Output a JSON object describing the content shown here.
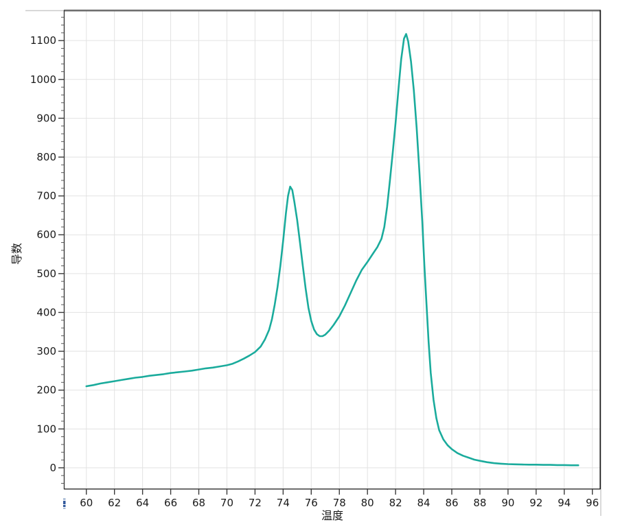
{
  "window": {
    "background_color": "#ffffff"
  },
  "chart_data": {
    "type": "line",
    "title": "",
    "xlabel": "温度",
    "ylabel": "导数",
    "x_range": [
      58.4,
      96.6
    ],
    "y_range": [
      -55,
      1178
    ],
    "x_ticks": [
      60,
      62,
      64,
      66,
      68,
      70,
      72,
      74,
      76,
      78,
      80,
      82,
      84,
      86,
      88,
      90,
      92,
      94,
      96
    ],
    "y_ticks": [
      0,
      100,
      200,
      300,
      400,
      500,
      600,
      700,
      800,
      900,
      1000,
      1100
    ],
    "y_minor_step": 20,
    "grid": true,
    "legend": "none",
    "colors": {
      "grid": "#e2e2e2",
      "tick_label": "#1a1a1a",
      "major_tick": "#3a3a3a",
      "minor_tick": "#5a5a5a"
    },
    "series": [
      {
        "name": "melt-curve-derivative",
        "color": "#1aab9c",
        "stroke_width": 2.6,
        "points": [
          [
            60,
            210
          ],
          [
            60.5,
            213
          ],
          [
            61,
            217
          ],
          [
            61.5,
            220
          ],
          [
            62,
            223
          ],
          [
            62.5,
            226
          ],
          [
            63,
            229
          ],
          [
            63.5,
            232
          ],
          [
            64,
            234
          ],
          [
            64.5,
            237
          ],
          [
            65,
            239
          ],
          [
            65.5,
            241
          ],
          [
            66,
            244
          ],
          [
            66.5,
            246
          ],
          [
            67,
            248
          ],
          [
            67.5,
            250
          ],
          [
            68,
            253
          ],
          [
            68.5,
            256
          ],
          [
            69,
            258
          ],
          [
            69.5,
            261
          ],
          [
            70,
            264
          ],
          [
            70.4,
            268
          ],
          [
            70.8,
            274
          ],
          [
            71.2,
            281
          ],
          [
            71.6,
            289
          ],
          [
            72,
            298
          ],
          [
            72.4,
            312
          ],
          [
            72.7,
            330
          ],
          [
            73,
            355
          ],
          [
            73.2,
            382
          ],
          [
            73.4,
            420
          ],
          [
            73.6,
            465
          ],
          [
            73.8,
            520
          ],
          [
            74,
            585
          ],
          [
            74.2,
            655
          ],
          [
            74.35,
            700
          ],
          [
            74.5,
            724
          ],
          [
            74.65,
            715
          ],
          [
            74.8,
            685
          ],
          [
            75,
            638
          ],
          [
            75.2,
            580
          ],
          [
            75.4,
            520
          ],
          [
            75.6,
            462
          ],
          [
            75.8,
            412
          ],
          [
            76,
            378
          ],
          [
            76.2,
            356
          ],
          [
            76.4,
            344
          ],
          [
            76.6,
            339
          ],
          [
            76.8,
            339
          ],
          [
            77,
            343
          ],
          [
            77.3,
            354
          ],
          [
            77.6,
            368
          ],
          [
            78,
            390
          ],
          [
            78.4,
            418
          ],
          [
            78.8,
            450
          ],
          [
            79.2,
            482
          ],
          [
            79.6,
            510
          ],
          [
            80,
            530
          ],
          [
            80.4,
            552
          ],
          [
            80.7,
            568
          ],
          [
            81,
            590
          ],
          [
            81.2,
            620
          ],
          [
            81.4,
            672
          ],
          [
            81.6,
            740
          ],
          [
            81.8,
            812
          ],
          [
            82,
            888
          ],
          [
            82.2,
            972
          ],
          [
            82.4,
            1052
          ],
          [
            82.6,
            1105
          ],
          [
            82.75,
            1117
          ],
          [
            82.9,
            1098
          ],
          [
            83.1,
            1046
          ],
          [
            83.3,
            972
          ],
          [
            83.5,
            876
          ],
          [
            83.7,
            760
          ],
          [
            83.9,
            635
          ],
          [
            84.05,
            520
          ],
          [
            84.2,
            420
          ],
          [
            84.35,
            325
          ],
          [
            84.5,
            245
          ],
          [
            84.7,
            175
          ],
          [
            84.9,
            128
          ],
          [
            85.1,
            97
          ],
          [
            85.4,
            73
          ],
          [
            85.7,
            58
          ],
          [
            86,
            48
          ],
          [
            86.4,
            38
          ],
          [
            86.8,
            31
          ],
          [
            87.2,
            26
          ],
          [
            87.6,
            21
          ],
          [
            88,
            18
          ],
          [
            88.5,
            14.5
          ],
          [
            89,
            12
          ],
          [
            89.5,
            10.5
          ],
          [
            90,
            9.5
          ],
          [
            90.5,
            9
          ],
          [
            91,
            8.5
          ],
          [
            91.5,
            8
          ],
          [
            92,
            8
          ],
          [
            92.5,
            7.5
          ],
          [
            93,
            7.5
          ],
          [
            93.5,
            7
          ],
          [
            94,
            7
          ],
          [
            94.5,
            6.5
          ],
          [
            95,
            6.5
          ]
        ]
      }
    ]
  },
  "decorations": {
    "scroll_hint": {
      "color_dark": "#32599c",
      "color_light": "#aebfd8"
    }
  }
}
